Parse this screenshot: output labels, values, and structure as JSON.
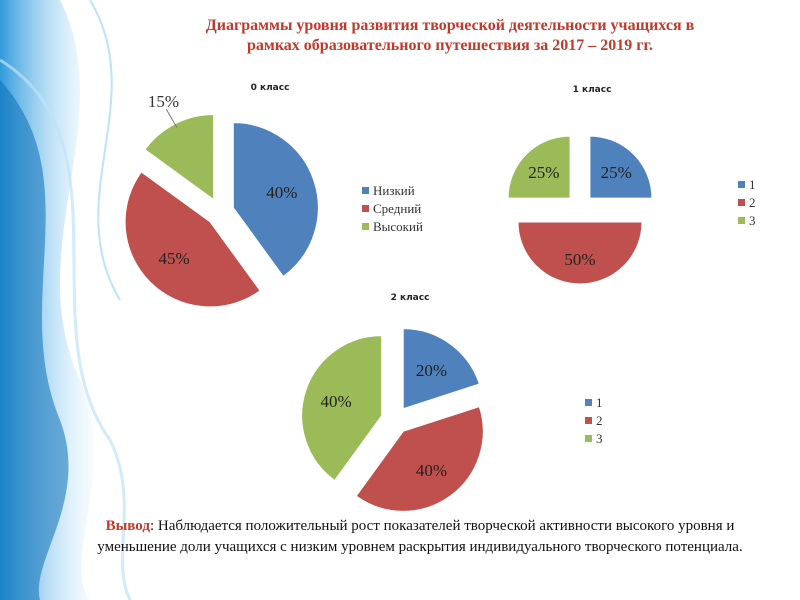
{
  "title": [
    "Диаграммы уровня развития творческой деятельности учащихся в",
    "рамках образовательного путешествия за 2017 – 2019 гг."
  ],
  "chart_data": [
    {
      "type": "pie",
      "title": "0 класс",
      "categories": [
        "Низкий",
        "Средний",
        "Высокий"
      ],
      "values": [
        40,
        45,
        15
      ],
      "value_labels": [
        "40%",
        "45%",
        "15%"
      ],
      "colors": [
        "#4f81bd",
        "#c0504d",
        "#9bbb59"
      ]
    },
    {
      "type": "pie",
      "title": "1 класс",
      "categories": [
        "1",
        "2",
        "3"
      ],
      "values": [
        25,
        50,
        25
      ],
      "value_labels": [
        "25%",
        "50%",
        "25%"
      ],
      "colors": [
        "#4f81bd",
        "#c0504d",
        "#9bbb59"
      ]
    },
    {
      "type": "pie",
      "title": "2 класс",
      "categories": [
        "1",
        "2",
        "3"
      ],
      "values": [
        20,
        40,
        40
      ],
      "value_labels": [
        "20%",
        "40%",
        "40%"
      ],
      "colors": [
        "#4f81bd",
        "#c0504d",
        "#9bbb59"
      ]
    }
  ],
  "conclusion": {
    "label": "Вывод",
    "text": ": Наблюдается положительный рост показателей творческой активности высокого уровня и уменьшение доли учащихся  с низким уровнем раскрытия индивидуального творческого потенциала."
  }
}
